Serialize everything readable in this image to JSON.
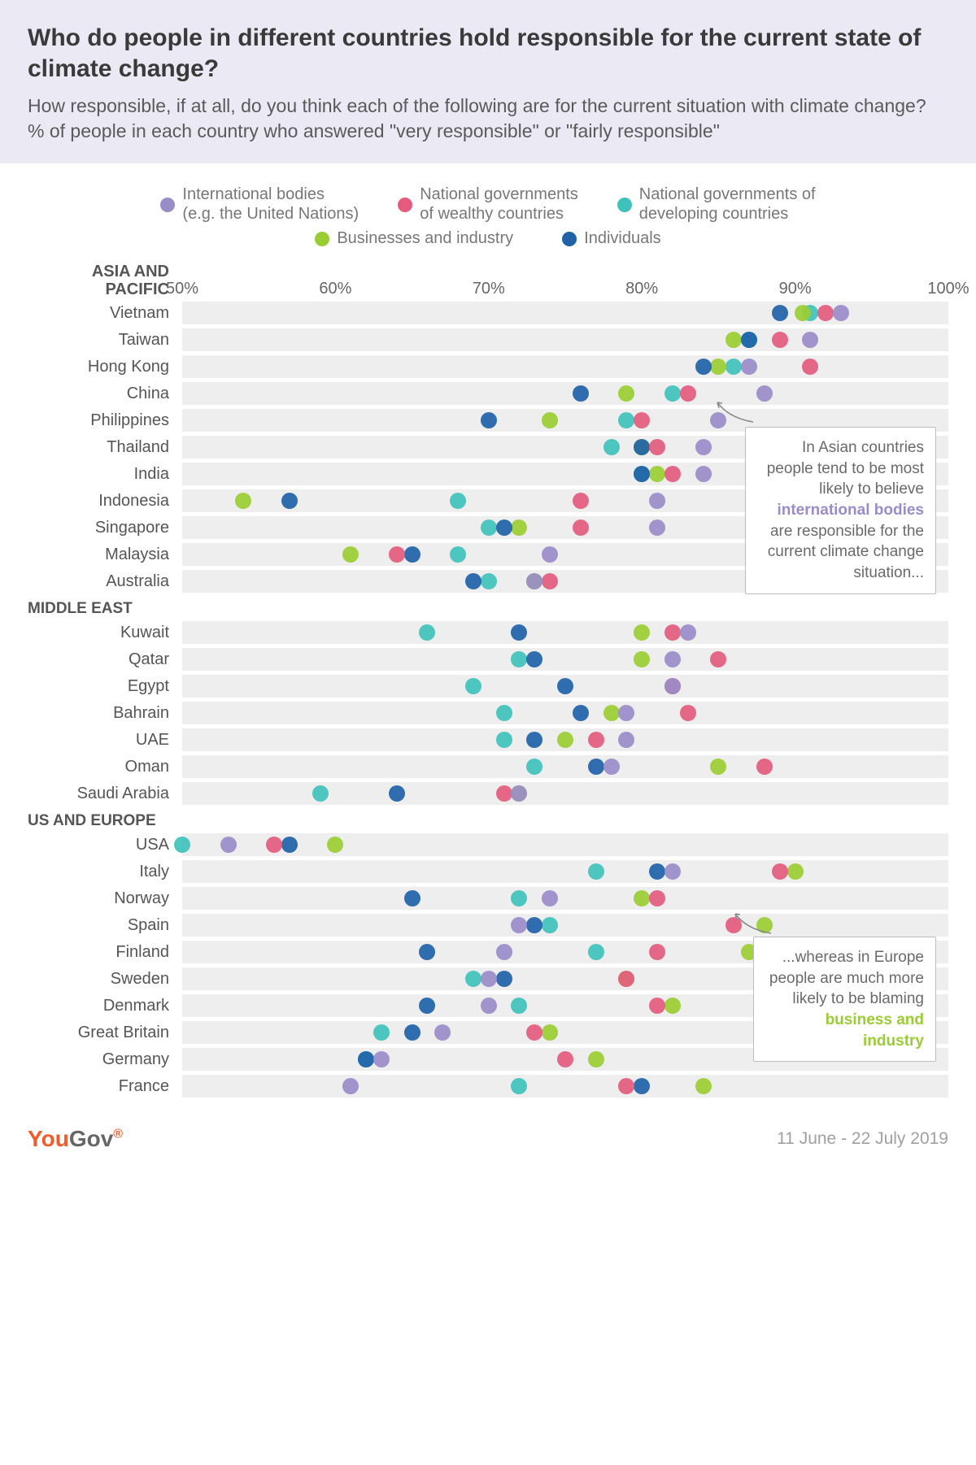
{
  "header": {
    "title": "Who do people in different countries hold responsible for the current state of climate change?",
    "subtitle_line1": "How responsible, if at all, do you think each of the following are for the current situation with climate change?",
    "subtitle_line2": "% of people in each country who answered \"very responsible\" or \"fairly responsible\""
  },
  "chart": {
    "type": "dotplot",
    "xmin": 50,
    "xmax": 100,
    "xticks": [
      50,
      60,
      70,
      80,
      90,
      100
    ],
    "xtick_labels": [
      "50%",
      "60%",
      "70%",
      "80%",
      "90%",
      "100%"
    ],
    "series": [
      {
        "key": "intl",
        "label": "International bodies\n(e.g. the United Nations)",
        "color": "#9a8cc9"
      },
      {
        "key": "wealthy",
        "label": "National governments\nof wealthy countries",
        "color": "#e45b7e"
      },
      {
        "key": "developing",
        "label": "National governments of\ndeveloping countries",
        "color": "#3fc2bb"
      },
      {
        "key": "business",
        "label": "Businesses and industry",
        "color": "#9acd32"
      },
      {
        "key": "individuals",
        "label": "Individuals",
        "color": "#1f62a8"
      }
    ],
    "sections": [
      {
        "label": "ASIA AND\nPACIFIC",
        "rows": [
          {
            "label": "Vietnam",
            "intl": 93,
            "wealthy": 92,
            "developing": 91,
            "business": 90.5,
            "individuals": 89
          },
          {
            "label": "Taiwan",
            "intl": 91,
            "wealthy": 89,
            "developing": 87,
            "business": 86,
            "individuals": 87
          },
          {
            "label": "Hong Kong",
            "intl": 87,
            "wealthy": 91,
            "developing": 86,
            "business": 85,
            "individuals": 84
          },
          {
            "label": "China",
            "intl": 88,
            "wealthy": 83,
            "developing": 82,
            "business": 79,
            "individuals": 76
          },
          {
            "label": "Philippines",
            "intl": 85,
            "wealthy": 80,
            "developing": 79,
            "business": 74,
            "individuals": 70
          },
          {
            "label": "Thailand",
            "intl": 84,
            "wealthy": 81,
            "developing": 78,
            "business": 80,
            "individuals": 80
          },
          {
            "label": "India",
            "intl": 84,
            "wealthy": 82,
            "developing": 80,
            "business": 81,
            "individuals": 80
          },
          {
            "label": "Indonesia",
            "intl": 81,
            "wealthy": 76,
            "developing": 68,
            "business": 54,
            "individuals": 57
          },
          {
            "label": "Singapore",
            "intl": 81,
            "wealthy": 76,
            "developing": 70,
            "business": 72,
            "individuals": 71
          },
          {
            "label": "Malaysia",
            "intl": 74,
            "wealthy": 64,
            "developing": 68,
            "business": 61,
            "individuals": 65
          },
          {
            "label": "Australia",
            "intl": 73,
            "wealthy": 74,
            "developing": 70,
            "business": 73,
            "individuals": 69
          }
        ]
      },
      {
        "label": "MIDDLE EAST",
        "rows": [
          {
            "label": "Kuwait",
            "intl": 83,
            "wealthy": 82,
            "developing": 66,
            "business": 80,
            "individuals": 72
          },
          {
            "label": "Qatar",
            "intl": 82,
            "wealthy": 85,
            "developing": 72,
            "business": 80,
            "individuals": 73
          },
          {
            "label": "Egypt",
            "intl": 82,
            "wealthy": 82,
            "developing": 69,
            "business": 82,
            "individuals": 75
          },
          {
            "label": "Bahrain",
            "intl": 79,
            "wealthy": 83,
            "developing": 71,
            "business": 78,
            "individuals": 76
          },
          {
            "label": "UAE",
            "intl": 79,
            "wealthy": 77,
            "developing": 71,
            "business": 75,
            "individuals": 73
          },
          {
            "label": "Oman",
            "intl": 78,
            "wealthy": 88,
            "developing": 73,
            "business": 85,
            "individuals": 77
          },
          {
            "label": "Saudi Arabia",
            "intl": 72,
            "wealthy": 71,
            "developing": 59,
            "business": 72,
            "individuals": 64
          }
        ]
      },
      {
        "label": "US AND EUROPE",
        "rows": [
          {
            "label": "USA",
            "intl": 53,
            "wealthy": 56,
            "developing": 50,
            "business": 60,
            "individuals": 57
          },
          {
            "label": "Italy",
            "intl": 82,
            "wealthy": 89,
            "developing": 77,
            "business": 90,
            "individuals": 81
          },
          {
            "label": "Norway",
            "intl": 74,
            "wealthy": 81,
            "developing": 72,
            "business": 80,
            "individuals": 65
          },
          {
            "label": "Spain",
            "intl": 72,
            "wealthy": 86,
            "developing": 74,
            "business": 88,
            "individuals": 73
          },
          {
            "label": "Finland",
            "intl": 71,
            "wealthy": 81,
            "developing": 77,
            "business": 87,
            "individuals": 66
          },
          {
            "label": "Sweden",
            "intl": 70,
            "wealthy": 79,
            "developing": 69,
            "business": 79,
            "individuals": 71
          },
          {
            "label": "Denmark",
            "intl": 70,
            "wealthy": 81,
            "developing": 72,
            "business": 82,
            "individuals": 66
          },
          {
            "label": "Great Britain",
            "intl": 67,
            "wealthy": 73,
            "developing": 63,
            "business": 74,
            "individuals": 65
          },
          {
            "label": "Germany",
            "intl": 63,
            "wealthy": 75,
            "developing": 62,
            "business": 77,
            "individuals": 62
          },
          {
            "label": "France",
            "intl": 61,
            "wealthy": 79,
            "developing": 72,
            "business": 84,
            "individuals": 80
          }
        ]
      }
    ],
    "callouts": [
      {
        "id": "asia",
        "text_before": "In Asian countries people tend to be most likely to believe ",
        "highlight": "international bodies",
        "highlight_color": "#9a8cc9",
        "text_after": " are responsible for the current climate change situation..."
      },
      {
        "id": "europe",
        "text_before": "...whereas in Europe people are much more likely to be blaming ",
        "highlight": "business and industry",
        "highlight_color": "#9acd32",
        "text_after": ""
      }
    ]
  },
  "footer": {
    "logo_a": "You",
    "logo_b": "Gov",
    "date": "11 June - 22 July 2019"
  },
  "colors": {
    "header_bg": "#ebe9f4",
    "row_bg": "#eeeeee",
    "text": "#4a4a4a"
  }
}
